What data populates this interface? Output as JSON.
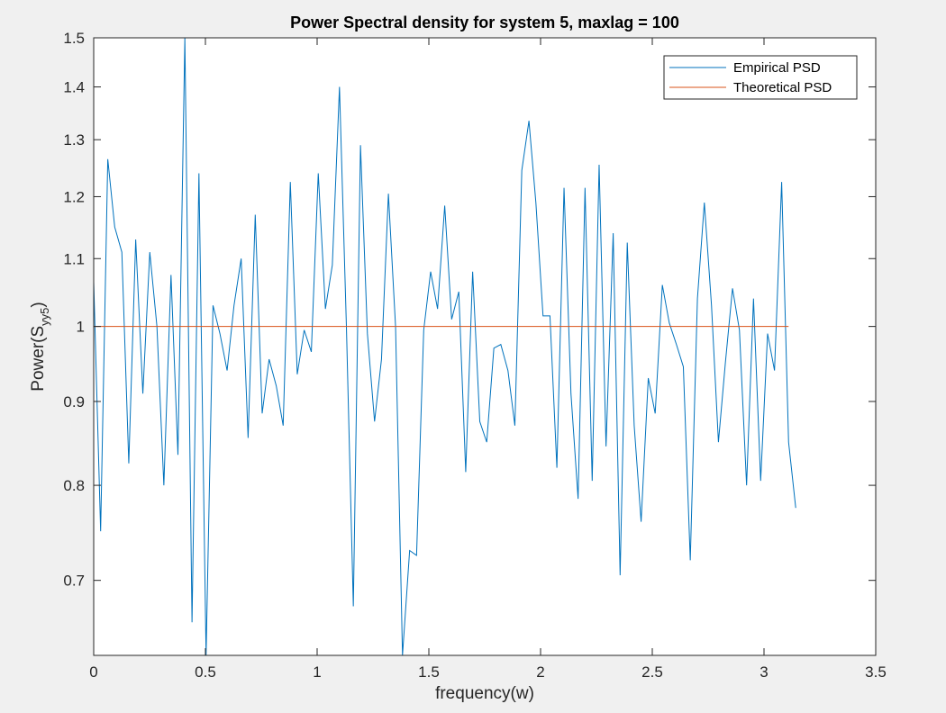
{
  "chart_data": {
    "type": "line",
    "title": "Power Spectral density for system 5, maxlag = 100",
    "xlabel": "frequency(w)",
    "ylabel": {
      "text": "Power(S",
      "sub": "yy5",
      "close": ")"
    },
    "xlim": [
      0,
      3.5
    ],
    "ylim": [
      0.63,
      1.5
    ],
    "yscale": "log",
    "xticks": [
      0,
      0.5,
      1,
      1.5,
      2,
      2.5,
      3,
      3.5
    ],
    "xtick_labels": [
      "0",
      "0.5",
      "1",
      "1.5",
      "2",
      "2.5",
      "3",
      "3.5"
    ],
    "yticks": [
      0.7,
      0.8,
      0.9,
      1,
      1.1,
      1.2,
      1.3,
      1.4,
      1.5
    ],
    "ytick_labels": [
      "0.7",
      "0.8",
      "0.9",
      "1",
      "1.1",
      "1.2",
      "1.3",
      "1.4",
      "1.5"
    ],
    "grid": false,
    "legend": {
      "placement": "top-right"
    },
    "series": [
      {
        "name": "Empirical PSD",
        "color": "#0072bd",
        "x": [
          0.0,
          0.031,
          0.063,
          0.094,
          0.126,
          0.157,
          0.188,
          0.22,
          0.251,
          0.283,
          0.314,
          0.346,
          0.377,
          0.408,
          0.44,
          0.471,
          0.503,
          0.534,
          0.565,
          0.597,
          0.628,
          0.66,
          0.691,
          0.723,
          0.754,
          0.785,
          0.817,
          0.848,
          0.88,
          0.911,
          0.942,
          0.974,
          1.005,
          1.037,
          1.068,
          1.1,
          1.131,
          1.162,
          1.194,
          1.225,
          1.257,
          1.288,
          1.319,
          1.351,
          1.382,
          1.414,
          1.445,
          1.477,
          1.508,
          1.539,
          1.571,
          1.602,
          1.634,
          1.665,
          1.696,
          1.728,
          1.759,
          1.791,
          1.822,
          1.854,
          1.885,
          1.916,
          1.948,
          1.979,
          2.011,
          2.042,
          2.073,
          2.105,
          2.136,
          2.168,
          2.199,
          2.231,
          2.262,
          2.293,
          2.325,
          2.356,
          2.388,
          2.419,
          2.45,
          2.482,
          2.513,
          2.545,
          2.576,
          2.608,
          2.639,
          2.67,
          2.702,
          2.733,
          2.765,
          2.796,
          2.827,
          2.859,
          2.89,
          2.922,
          2.953,
          2.985,
          3.016,
          3.047,
          3.079,
          3.11,
          3.142
        ],
        "values": [
          1.065,
          0.75,
          1.265,
          1.15,
          1.11,
          0.825,
          1.13,
          0.91,
          1.11,
          1.0,
          0.8,
          1.075,
          0.835,
          1.5,
          0.66,
          1.24,
          0.63,
          1.03,
          0.99,
          0.94,
          1.03,
          1.1,
          0.855,
          1.17,
          0.885,
          0.955,
          0.92,
          0.87,
          1.225,
          0.935,
          0.995,
          0.965,
          1.24,
          1.025,
          1.09,
          1.4,
          1.0,
          0.675,
          1.29,
          0.99,
          0.875,
          0.955,
          1.205,
          1.0,
          0.63,
          0.73,
          0.725,
          0.995,
          1.08,
          1.025,
          1.185,
          1.01,
          1.05,
          0.815,
          1.08,
          0.875,
          0.85,
          0.97,
          0.975,
          0.94,
          0.87,
          1.245,
          1.335,
          1.19,
          1.015,
          1.015,
          0.82,
          1.215,
          0.91,
          0.785,
          1.215,
          0.805,
          1.255,
          0.845,
          1.14,
          0.705,
          1.125,
          0.87,
          0.76,
          0.93,
          0.885,
          1.06,
          1.005,
          0.975,
          0.945,
          0.72,
          1.04,
          1.19,
          1.03,
          0.85,
          0.95,
          1.055,
          0.995,
          0.8,
          1.04,
          0.805,
          0.99,
          0.94,
          1.225,
          0.85,
          0.775
        ]
      },
      {
        "name": "Theoretical PSD",
        "color": "#d95319",
        "x": [
          0.0,
          3.11
        ],
        "values": [
          1.0,
          1.0
        ]
      }
    ]
  }
}
